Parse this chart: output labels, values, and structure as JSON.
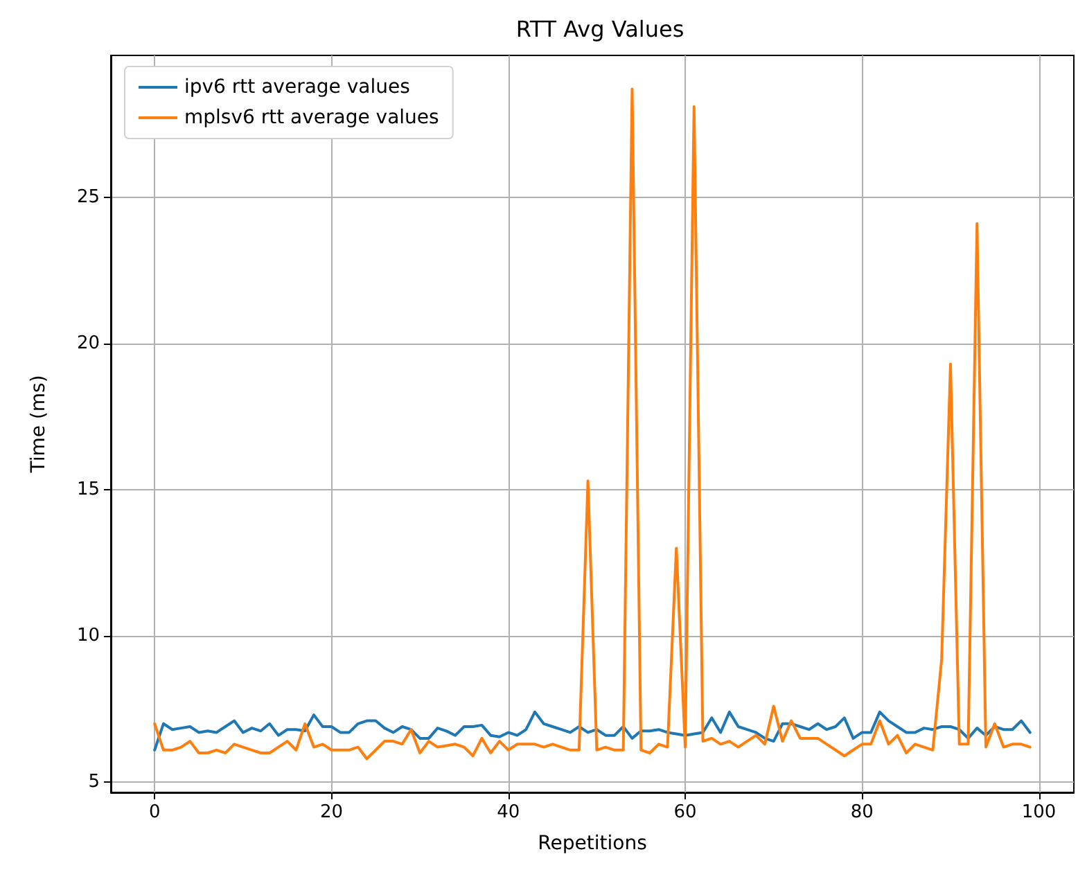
{
  "chart_data": {
    "type": "line",
    "title": "RTT Avg Values",
    "xlabel": "Repetitions",
    "ylabel": "Time (ms)",
    "x": [
      0,
      1,
      2,
      3,
      4,
      5,
      6,
      7,
      8,
      9,
      10,
      11,
      12,
      13,
      14,
      15,
      16,
      17,
      18,
      19,
      20,
      21,
      22,
      23,
      24,
      25,
      26,
      27,
      28,
      29,
      30,
      31,
      32,
      33,
      34,
      35,
      36,
      37,
      38,
      39,
      40,
      41,
      42,
      43,
      44,
      45,
      46,
      47,
      48,
      49,
      50,
      51,
      52,
      53,
      54,
      55,
      56,
      57,
      58,
      59,
      60,
      61,
      62,
      63,
      64,
      65,
      66,
      67,
      68,
      69,
      70,
      71,
      72,
      73,
      74,
      75,
      76,
      77,
      78,
      79,
      80,
      81,
      82,
      83,
      84,
      85,
      86,
      87,
      88,
      89,
      90,
      91,
      92,
      93,
      94,
      95,
      96,
      97,
      98,
      99
    ],
    "series": [
      {
        "name": "ipv6 rtt average values",
        "color": "#1f77b4",
        "values": [
          6.1,
          7.0,
          6.8,
          6.85,
          6.9,
          6.7,
          6.75,
          6.7,
          6.9,
          7.1,
          6.7,
          6.85,
          6.75,
          7.0,
          6.6,
          6.8,
          6.8,
          6.75,
          7.3,
          6.9,
          6.9,
          6.7,
          6.7,
          7.0,
          7.1,
          7.1,
          6.85,
          6.7,
          6.9,
          6.8,
          6.5,
          6.5,
          6.85,
          6.75,
          6.6,
          6.9,
          6.9,
          6.95,
          6.6,
          6.55,
          6.7,
          6.6,
          6.8,
          7.4,
          7.0,
          6.9,
          6.8,
          6.7,
          6.9,
          6.7,
          6.8,
          6.6,
          6.6,
          6.9,
          6.5,
          6.75,
          6.75,
          6.8,
          6.7,
          6.65,
          6.6,
          6.65,
          6.7,
          7.2,
          6.7,
          7.4,
          6.9,
          6.8,
          6.7,
          6.5,
          6.4,
          7.0,
          7.0,
          6.9,
          6.8,
          7.0,
          6.8,
          6.9,
          7.2,
          6.5,
          6.7,
          6.7,
          7.4,
          7.1,
          6.9,
          6.7,
          6.7,
          6.85,
          6.8,
          6.9,
          6.9,
          6.8,
          6.5,
          6.85,
          6.6,
          6.9,
          6.8,
          6.8,
          7.1,
          6.7
        ]
      },
      {
        "name": "mplsv6 rtt average values",
        "color": "#ff7f0e",
        "values": [
          7.0,
          6.1,
          6.1,
          6.2,
          6.4,
          6.0,
          6.0,
          6.1,
          6.0,
          6.3,
          6.2,
          6.1,
          6.0,
          6.0,
          6.2,
          6.4,
          6.1,
          7.0,
          6.2,
          6.3,
          6.1,
          6.1,
          6.1,
          6.2,
          5.8,
          6.1,
          6.4,
          6.4,
          6.3,
          6.8,
          6.0,
          6.4,
          6.2,
          6.25,
          6.3,
          6.2,
          5.9,
          6.5,
          6.0,
          6.4,
          6.1,
          6.3,
          6.3,
          6.3,
          6.2,
          6.3,
          6.2,
          6.1,
          6.1,
          15.3,
          6.1,
          6.2,
          6.1,
          6.1,
          28.7,
          6.1,
          6.0,
          6.3,
          6.2,
          13.0,
          6.2,
          28.1,
          6.4,
          6.5,
          6.3,
          6.4,
          6.2,
          6.4,
          6.6,
          6.3,
          7.6,
          6.4,
          7.1,
          6.5,
          6.5,
          6.5,
          6.3,
          6.1,
          5.9,
          6.1,
          6.3,
          6.3,
          7.1,
          6.3,
          6.6,
          6.0,
          6.3,
          6.2,
          6.1,
          9.2,
          19.3,
          6.3,
          6.3,
          24.1,
          6.2,
          7.0,
          6.2,
          6.3,
          6.3,
          6.2
        ]
      }
    ],
    "xlim": [
      -4.95,
      103.95
    ],
    "xticks": [
      0,
      20,
      40,
      60,
      80,
      100
    ],
    "ylim": [
      4.65,
      29.85
    ],
    "yticks": [
      5,
      10,
      15,
      20,
      25
    ],
    "grid": true,
    "legend": "top left",
    "marker": "none",
    "line_style": "solid"
  }
}
